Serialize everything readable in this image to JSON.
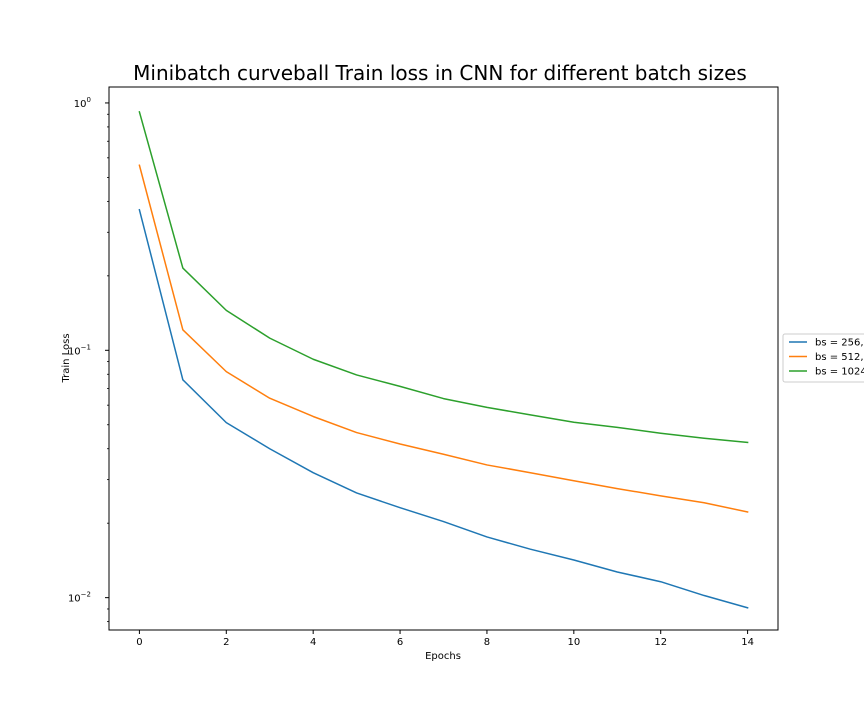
{
  "chart_data": {
    "type": "line",
    "title": "Minibatch curveball Train loss in CNN for different batch sizes",
    "xlabel": "Epochs",
    "ylabel": "Train Loss",
    "xlim": [
      -0.7,
      14.7
    ],
    "ylim": [
      0.0074,
      1.16
    ],
    "yscale": "log",
    "grid": false,
    "legend_position": "right, outside plot (clipped)",
    "x_ticks": [
      0,
      2,
      4,
      6,
      8,
      10,
      12,
      14
    ],
    "y_ticks": [
      {
        "value": 0.01,
        "base": "10",
        "exp": "−2"
      },
      {
        "value": 0.1,
        "base": "10",
        "exp": "−1"
      },
      {
        "value": 1,
        "base": "10",
        "exp": "0"
      }
    ],
    "x": [
      0,
      1,
      2,
      3,
      4,
      5,
      6,
      7,
      8,
      9,
      10,
      11,
      12,
      13,
      14
    ],
    "series": [
      {
        "name": "bs = 256,",
        "color": "#1f77b4",
        "values": [
          0.37,
          0.076,
          0.051,
          0.04,
          0.032,
          0.0265,
          0.0231,
          0.0203,
          0.0176,
          0.0157,
          0.0142,
          0.0127,
          0.0116,
          0.0102,
          0.0091
        ]
      },
      {
        "name": "bs = 512,",
        "color": "#ff7f0e",
        "values": [
          0.56,
          0.121,
          0.082,
          0.064,
          0.054,
          0.0465,
          0.0418,
          0.038,
          0.0344,
          0.032,
          0.0297,
          0.0276,
          0.0258,
          0.0242,
          0.0222
        ]
      },
      {
        "name": "bs = 1024",
        "color": "#2ca02c",
        "values": [
          0.92,
          0.215,
          0.145,
          0.112,
          0.092,
          0.0795,
          0.0715,
          0.0638,
          0.0588,
          0.0548,
          0.0512,
          0.0488,
          0.0462,
          0.0441,
          0.0424
        ]
      }
    ]
  }
}
